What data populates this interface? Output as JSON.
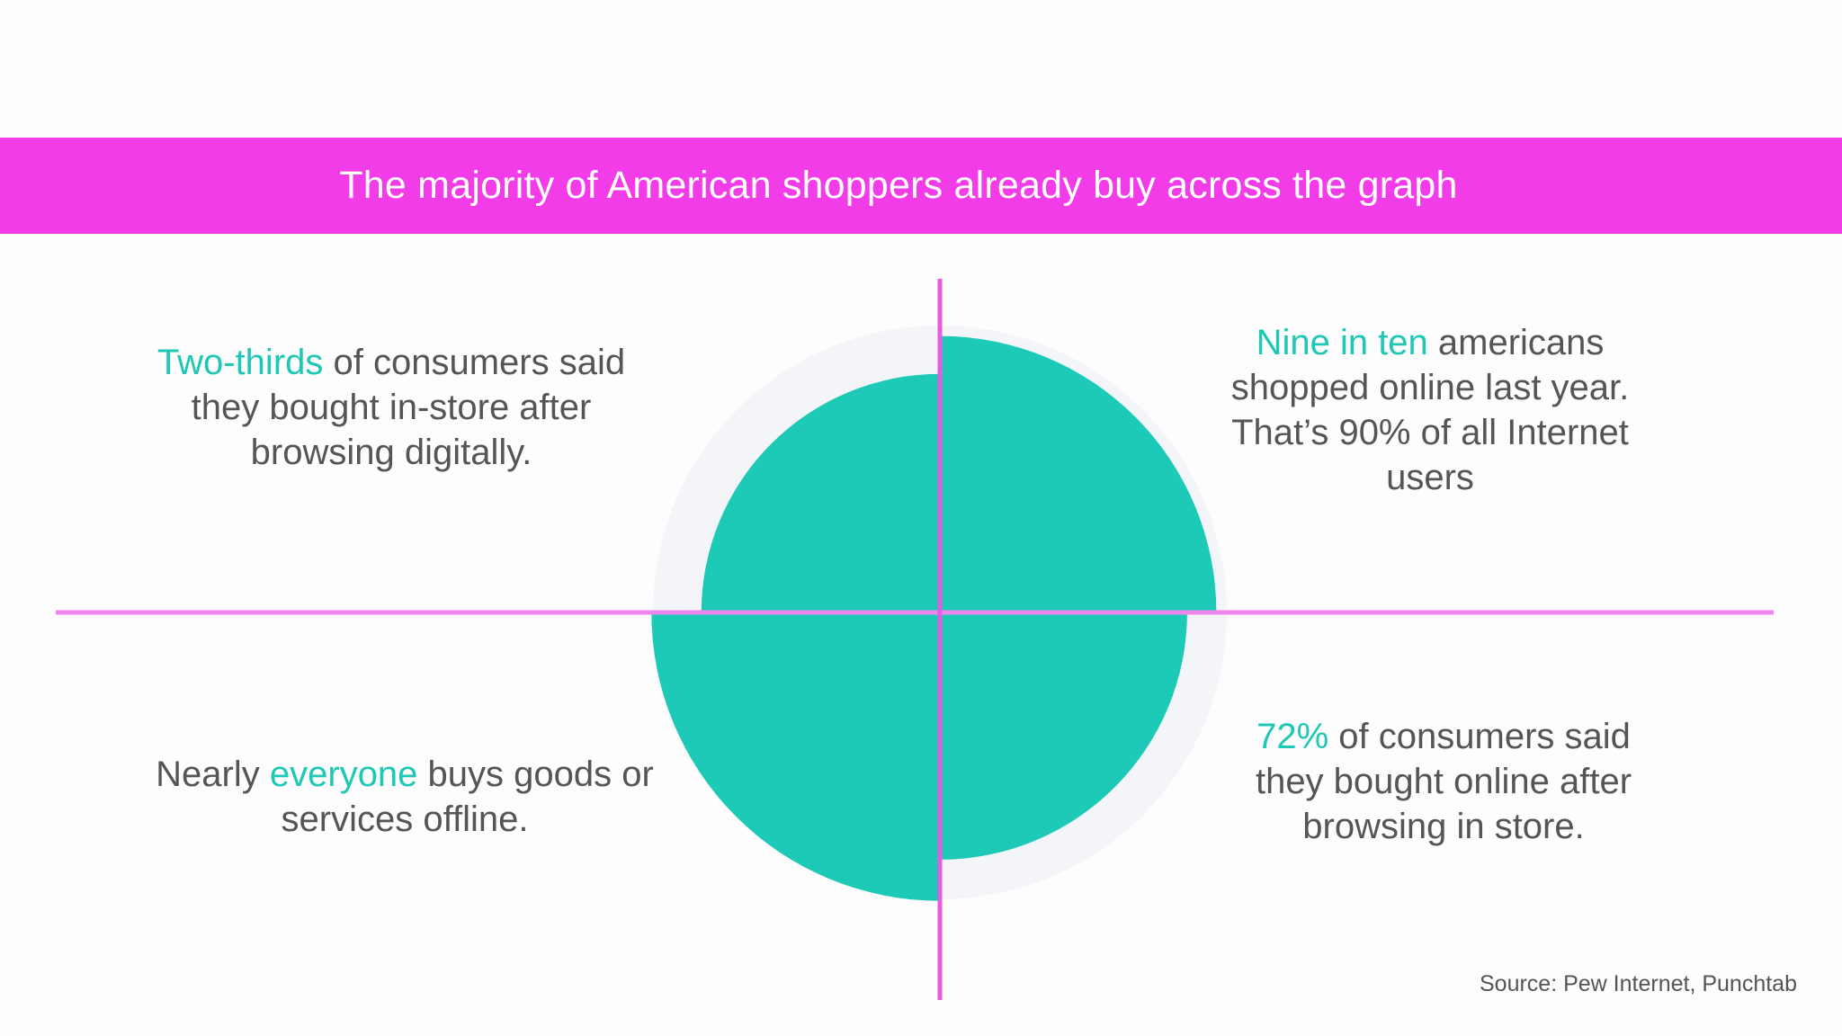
{
  "colors": {
    "banner": "#f23ce8",
    "accent": "#1ccab7",
    "axis": "#ee86ee",
    "axis_vertical": "#e45ce0",
    "ring": "#f4f5f8",
    "text": "#555555"
  },
  "banner": {
    "title": "The majority of American shoppers already buy across the graph"
  },
  "chart_data": {
    "type": "polar-area",
    "quadrants": [
      {
        "position": "top-right",
        "value": 0.9,
        "highlight": "Nine in ten",
        "text": " americans shopped online last year. That’s 90% of all Internet users"
      },
      {
        "position": "top-left",
        "value": 0.67,
        "highlight": "Two-thirds",
        "text": " of consumers said they bought in-store after browsing digitally."
      },
      {
        "position": "bottom-left",
        "value": 0.98,
        "pre": "Nearly ",
        "highlight": "everyone",
        "text": " buys goods or services offline."
      },
      {
        "position": "bottom-right",
        "value": 0.72,
        "highlight": "72%",
        "text": " of consumers said they bought online after browsing in store."
      }
    ]
  },
  "source": "Source: Pew Internet, Punchtab"
}
